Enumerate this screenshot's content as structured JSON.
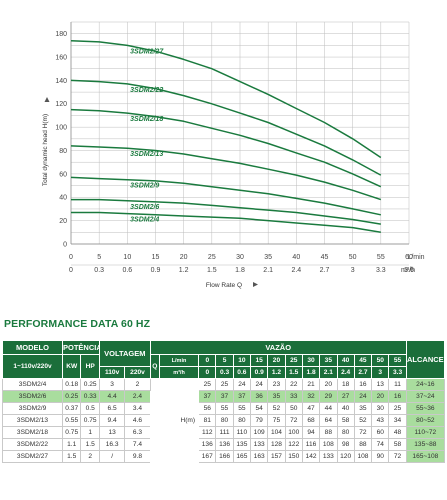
{
  "chart_data": {
    "type": "line",
    "xlabel": "Flow Rate Q",
    "ylabel": "Total dynamic head H(m)",
    "x_units": "L/min",
    "x2_units": "m³/h",
    "xlim": [
      0,
      60
    ],
    "ylim": [
      0,
      190
    ],
    "x_ticks": [
      "0",
      "5",
      "10",
      "15",
      "20",
      "25",
      "30",
      "35",
      "40",
      "45",
      "50",
      "55",
      "60"
    ],
    "x2_ticks": [
      "0",
      "0.3",
      "0.6",
      "0.9",
      "1.2",
      "1.5",
      "1.8",
      "2.1",
      "2.4",
      "2.7",
      "3",
      "3.3",
      "3.6"
    ],
    "y_ticks": [
      "0",
      "10",
      "20",
      "30",
      "40",
      "50",
      "60",
      "70",
      "80",
      "90",
      "100",
      "110",
      "120",
      "130",
      "140",
      "150",
      "160",
      "170",
      "180",
      "190"
    ],
    "x": [
      0,
      5,
      10,
      15,
      20,
      25,
      30,
      35,
      40,
      45,
      50,
      55
    ],
    "series": [
      {
        "name": "3SDM2/27",
        "values": [
          174,
          173,
          170,
          165,
          158,
          150,
          139,
          128,
          116,
          104,
          90,
          74
        ]
      },
      {
        "name": "3SDM2/22",
        "values": [
          140,
          139,
          137,
          133,
          127,
          120,
          112,
          104,
          94,
          84,
          72,
          59
        ]
      },
      {
        "name": "3SDM2/18",
        "values": [
          115,
          114,
          112,
          109,
          105,
          99,
          93,
          86,
          78,
          70,
          60,
          49
        ]
      },
      {
        "name": "3SDM2/13",
        "values": [
          84,
          83,
          82,
          80,
          77,
          73,
          69,
          64,
          59,
          53,
          46,
          38
        ]
      },
      {
        "name": "3SDM2/9",
        "values": [
          57,
          56,
          55,
          54,
          52,
          49,
          46,
          43,
          39,
          35,
          30,
          25
        ]
      },
      {
        "name": "3SDM2/6",
        "values": [
          38,
          38,
          37,
          36,
          35,
          33,
          31,
          29,
          27,
          24,
          21,
          17
        ]
      },
      {
        "name": "3SDM2/4",
        "values": [
          27,
          27,
          26,
          25,
          24,
          23,
          22,
          20,
          18,
          16,
          14,
          10
        ]
      }
    ],
    "curve_color": "#1a7a3e",
    "grid": true
  },
  "performance": {
    "title": "PERFORMANCE DATA 60 HZ",
    "headers": {
      "modelo": "MODELO",
      "potencia": "POTÊNCIA",
      "voltagem": "VOLTAGEM",
      "vazao": "VAZÃO",
      "alcance": "ALCANCE",
      "model_voltage": "1~110v/220v",
      "kw": "KW",
      "hp": "HP",
      "v110": "110v",
      "v220": "220v",
      "q": "Q",
      "lmin": "L/min",
      "m3h": "m³/h",
      "h_m": "H(m)",
      "flow_lmin": [
        "0",
        "5",
        "10",
        "15",
        "20",
        "25",
        "30",
        "35",
        "40",
        "45",
        "50",
        "55"
      ],
      "flow_m3h": [
        "0",
        "0.3",
        "0.6",
        "0.9",
        "1.2",
        "1.5",
        "1.8",
        "2.1",
        "2.4",
        "2.7",
        "3",
        "3.3"
      ]
    },
    "rows": [
      {
        "model": "3SDM2/4",
        "kw": "0.18",
        "hp": "0.25",
        "v110": "3",
        "v220": "2",
        "heads": [
          "25",
          "25",
          "24",
          "24",
          "23",
          "22",
          "21",
          "20",
          "18",
          "16",
          "13",
          "11"
        ],
        "alcance": "24~16"
      },
      {
        "model": "3SDM2/6",
        "kw": "0.25",
        "hp": "0.33",
        "v110": "4.4",
        "v220": "2.4",
        "heads": [
          "37",
          "37",
          "37",
          "36",
          "35",
          "33",
          "32",
          "29",
          "27",
          "24",
          "20",
          "16"
        ],
        "alcance": "37~24"
      },
      {
        "model": "3SDM2/9",
        "kw": "0.37",
        "hp": "0.5",
        "v110": "6.5",
        "v220": "3.4",
        "heads": [
          "56",
          "55",
          "55",
          "54",
          "52",
          "50",
          "47",
          "44",
          "40",
          "35",
          "30",
          "25"
        ],
        "alcance": "55~36"
      },
      {
        "model": "3SDM2/13",
        "kw": "0.55",
        "hp": "0.75",
        "v110": "9.4",
        "v220": "4.6",
        "heads": [
          "81",
          "80",
          "80",
          "79",
          "75",
          "72",
          "68",
          "64",
          "58",
          "52",
          "43",
          "34"
        ],
        "alcance": "80~52"
      },
      {
        "model": "3SDM2/18",
        "kw": "0.75",
        "hp": "1",
        "v110": "13",
        "v220": "6.3",
        "heads": [
          "112",
          "111",
          "110",
          "109",
          "104",
          "100",
          "94",
          "88",
          "80",
          "72",
          "60",
          "48"
        ],
        "alcance": "110~72"
      },
      {
        "model": "3SDM2/22",
        "kw": "1.1",
        "hp": "1.5",
        "v110": "16.3",
        "v220": "7.4",
        "heads": [
          "136",
          "136",
          "135",
          "133",
          "128",
          "122",
          "116",
          "108",
          "98",
          "88",
          "74",
          "58"
        ],
        "alcance": "135~88"
      },
      {
        "model": "3SDM2/27",
        "kw": "1.5",
        "hp": "2",
        "v110": "/",
        "v220": "9.8",
        "heads": [
          "167",
          "166",
          "165",
          "163",
          "157",
          "150",
          "142",
          "133",
          "120",
          "108",
          "90",
          "72"
        ],
        "alcance": "165~108"
      }
    ],
    "highlight_row": 1,
    "colors": {
      "header": "#1b6e3a",
      "highlight": "#a9dd9e",
      "title": "#1a7a3e"
    }
  }
}
